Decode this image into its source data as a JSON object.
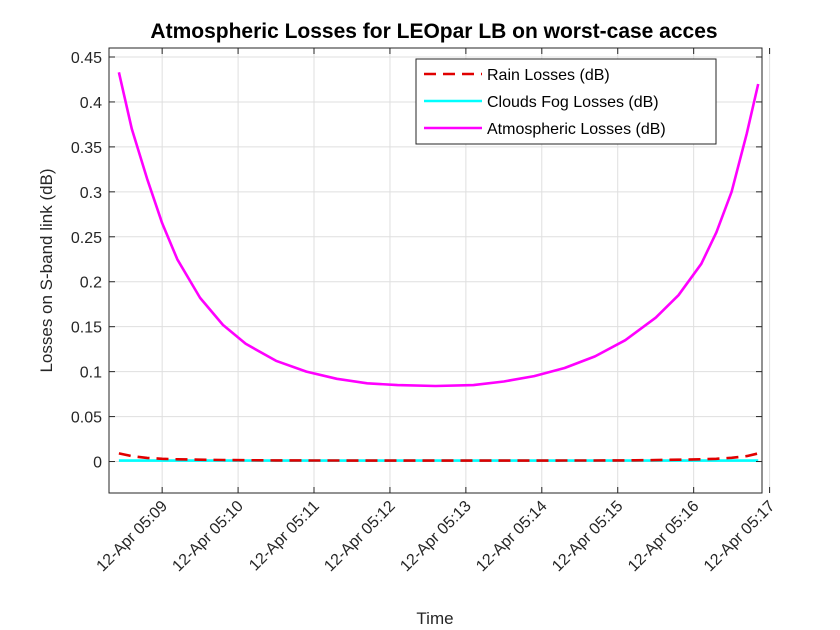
{
  "chart_data": {
    "type": "line",
    "title": "Atmospheric Losses for LEOpar LB on worst-case acces",
    "xlabel": "Time",
    "ylabel": "Losses on S-band link (dB)",
    "x_unit": "minutes past 12-Apr 05:00",
    "xlim": [
      8.3,
      16.9
    ],
    "ylim": [
      -0.035,
      0.46
    ],
    "x_ticks": [
      9,
      10,
      11,
      12,
      13,
      14,
      15,
      16,
      17
    ],
    "x_tick_labels": [
      "12-Apr 05:09",
      "12-Apr 05:10",
      "12-Apr 05:11",
      "12-Apr 05:12",
      "12-Apr 05:13",
      "12-Apr 05:14",
      "12-Apr 05:15",
      "12-Apr 05:16",
      "12-Apr 05:17"
    ],
    "y_ticks": [
      0,
      0.05,
      0.1,
      0.15,
      0.2,
      0.25,
      0.3,
      0.35,
      0.4,
      0.45
    ],
    "y_tick_labels": [
      "0",
      "0.05",
      "0.1",
      "0.15",
      "0.2",
      "0.25",
      "0.3",
      "0.35",
      "0.4",
      "0.45"
    ],
    "grid": true,
    "legend_position": "top-right",
    "x": [
      8.43,
      8.6,
      8.8,
      9.0,
      9.2,
      9.5,
      9.8,
      10.1,
      10.5,
      10.9,
      11.3,
      11.7,
      12.1,
      12.6,
      13.1,
      13.5,
      13.9,
      14.3,
      14.7,
      15.1,
      15.5,
      15.8,
      16.1,
      16.3,
      16.5,
      16.7,
      16.85
    ],
    "series": [
      {
        "name": "Rain Losses (dB)",
        "color": "#e00000",
        "dash": "dashed",
        "values": [
          0.009,
          0.006,
          0.004,
          0.003,
          0.0025,
          0.002,
          0.0017,
          0.0015,
          0.0013,
          0.0012,
          0.0011,
          0.001,
          0.001,
          0.001,
          0.001,
          0.001,
          0.001,
          0.0011,
          0.0012,
          0.0013,
          0.0016,
          0.002,
          0.0025,
          0.003,
          0.0042,
          0.006,
          0.009
        ]
      },
      {
        "name": "Clouds Fog Losses (dB)",
        "color": "#00ffff",
        "dash": "solid",
        "values": [
          0.001,
          0.001,
          0.001,
          0.001,
          0.001,
          0.001,
          0.001,
          0.001,
          0.001,
          0.001,
          0.001,
          0.001,
          0.001,
          0.001,
          0.001,
          0.001,
          0.001,
          0.001,
          0.001,
          0.001,
          0.001,
          0.001,
          0.001,
          0.001,
          0.001,
          0.001,
          0.001
        ]
      },
      {
        "name": "Atmospheric Losses (dB)",
        "color": "#ff00ff",
        "dash": "solid",
        "values": [
          0.433,
          0.37,
          0.315,
          0.265,
          0.225,
          0.182,
          0.152,
          0.131,
          0.112,
          0.1,
          0.092,
          0.087,
          0.085,
          0.084,
          0.085,
          0.089,
          0.095,
          0.104,
          0.117,
          0.135,
          0.16,
          0.185,
          0.22,
          0.255,
          0.3,
          0.365,
          0.42
        ]
      }
    ]
  }
}
